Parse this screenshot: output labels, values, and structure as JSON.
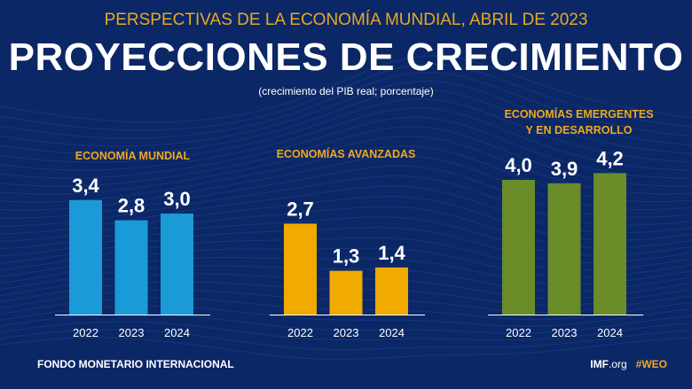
{
  "header": {
    "supertitle": "PERSPECTIVAS DE LA ECONOMÍA MUNDIAL, ABRIL DE 2023",
    "title": "PROYECCIONES DE CRECIMIENTO",
    "subtitle": "(crecimiento del PIB real; porcentaje)"
  },
  "chart_data": [
    {
      "type": "bar",
      "title": "ECONOMÍA MUNDIAL",
      "categories": [
        "2022",
        "2023",
        "2024"
      ],
      "values": [
        3.4,
        2.8,
        3.0
      ],
      "labels": [
        "3,4",
        "2,8",
        "3,0"
      ],
      "color": "#1b9ad8"
    },
    {
      "type": "bar",
      "title": "ECONOMÍAS AVANZADAS",
      "categories": [
        "2022",
        "2023",
        "2024"
      ],
      "values": [
        2.7,
        1.3,
        1.4
      ],
      "labels": [
        "2,7",
        "1,3",
        "1,4"
      ],
      "color": "#f0aa00"
    },
    {
      "type": "bar",
      "title": "ECONOMÍAS EMERGENTES Y EN DESARROLLO",
      "title_lines": [
        "ECONOMÍAS EMERGENTES",
        "Y EN DESARROLLO"
      ],
      "categories": [
        "2022",
        "2023",
        "2024"
      ],
      "values": [
        4.0,
        3.9,
        4.2
      ],
      "labels": [
        "4,0",
        "3,9",
        "4,2"
      ],
      "color": "#6a8d2a"
    }
  ],
  "footer": {
    "org": "FONDO MONETARIO INTERNACIONAL",
    "site_bold": "IMF",
    "site_rest": ".org",
    "hashtag": "#WEO"
  },
  "colors": {
    "background": "#0b2766",
    "accent": "#e9a91f"
  }
}
